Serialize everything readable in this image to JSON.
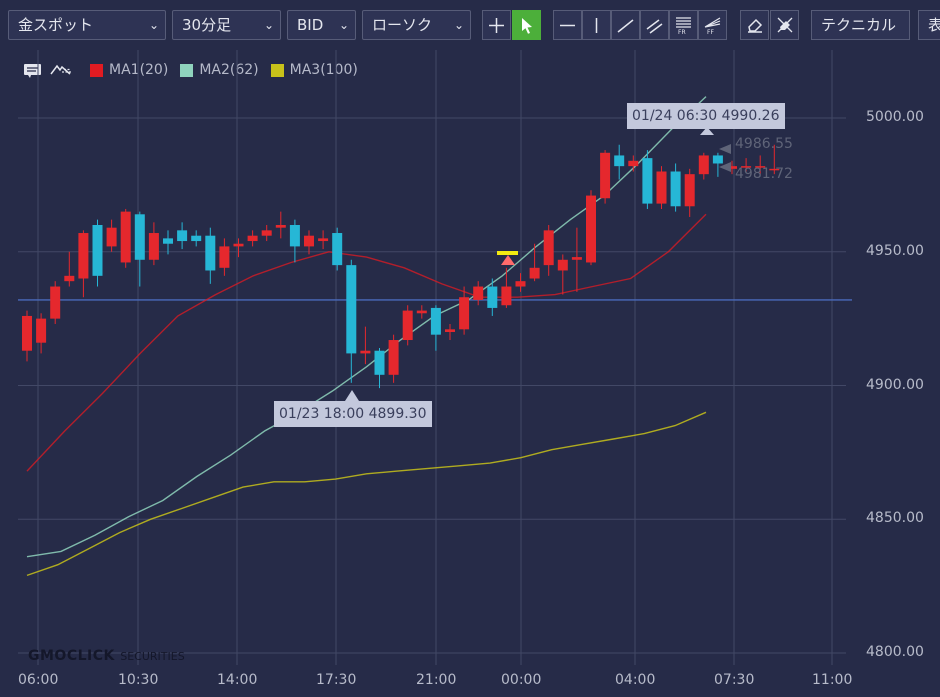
{
  "toolbar": {
    "symbol": "金スポット",
    "timeframe": "30分足",
    "price_type": "BID",
    "chart_style": "ローソク",
    "technical_label": "テクニカル",
    "display_label": "表"
  },
  "legend": {
    "series": [
      {
        "name": "MA1(20)",
        "color": "#e11b22"
      },
      {
        "name": "MA2(62)",
        "color": "#8fd3bd"
      },
      {
        "name": "MA3(100)",
        "color": "#c8c21a"
      }
    ]
  },
  "tooltips": {
    "high": "01/24 06:30 4990.26",
    "low": "01/23 18:00 4899.30"
  },
  "price_tags": {
    "upper": "4986.55",
    "lower": "4981.72"
  },
  "logo": {
    "main": "GMOCLICK",
    "sub": "SECURITIES"
  },
  "chart_data": {
    "type": "candlestick",
    "y_ticks": [
      "5000.00",
      "4950.00",
      "4900.00",
      "4850.00",
      "4800.00"
    ],
    "x_ticks": [
      "06:00",
      "10:30",
      "14:00",
      "17:30",
      "21:00",
      "00:00",
      "04:00",
      "07:30",
      "11:00"
    ],
    "ylim": [
      4800,
      5000
    ],
    "horizontal_line": 4932,
    "candles": [
      [
        4913,
        4926,
        4909,
        4928
      ],
      [
        4916,
        4925,
        4912,
        4927
      ],
      [
        4925,
        4937,
        4923,
        4939
      ],
      [
        4939,
        4941,
        4937,
        4950
      ],
      [
        4940,
        4957,
        4933,
        4958
      ],
      [
        4960,
        4941,
        4937,
        4962
      ],
      [
        4952,
        4959,
        4950,
        4962
      ],
      [
        4946,
        4965,
        4944,
        4966
      ],
      [
        4964,
        4947,
        4937,
        4965
      ],
      [
        4947,
        4957,
        4945,
        4961
      ],
      [
        4955,
        4953,
        4949,
        4958
      ],
      [
        4958,
        4954,
        4951,
        4961
      ],
      [
        4956,
        4954,
        4952,
        4958
      ],
      [
        4956,
        4943,
        4938,
        4959
      ],
      [
        4944,
        4952,
        4941,
        4955
      ],
      [
        4952,
        4953,
        4948,
        4955
      ],
      [
        4954,
        4956,
        4952,
        4958
      ],
      [
        4956,
        4958,
        4954,
        4960
      ],
      [
        4959,
        4960,
        4955,
        4965
      ],
      [
        4960,
        4952,
        4946,
        4962
      ],
      [
        4952,
        4956,
        4949,
        4958
      ],
      [
        4954,
        4955,
        4951,
        4958
      ],
      [
        4957,
        4945,
        4943,
        4959
      ],
      [
        4945,
        4912,
        4901,
        4947
      ],
      [
        4912,
        4913,
        4908,
        4922
      ],
      [
        4913,
        4904,
        4899,
        4914
      ],
      [
        4904,
        4917,
        4901,
        4919
      ],
      [
        4917,
        4928,
        4915,
        4930
      ],
      [
        4927,
        4928,
        4925,
        4930
      ],
      [
        4929,
        4919,
        4913,
        4930
      ],
      [
        4920,
        4921,
        4917,
        4923
      ],
      [
        4921,
        4933,
        4919,
        4937
      ],
      [
        4932,
        4937,
        4930,
        4939
      ],
      [
        4937,
        4929,
        4926,
        4940
      ],
      [
        4930,
        4937,
        4929,
        4944
      ],
      [
        4937,
        4939,
        4935,
        4942
      ],
      [
        4940,
        4944,
        4939,
        4953
      ],
      [
        4945,
        4958,
        4941,
        4960
      ],
      [
        4943,
        4947,
        4934,
        4949
      ],
      [
        4947,
        4948,
        4935,
        4959
      ],
      [
        4946,
        4971,
        4945,
        4973
      ],
      [
        4970,
        4987,
        4968,
        4988
      ],
      [
        4986,
        4982,
        4977,
        4990
      ],
      [
        4982,
        4984,
        4980,
        4986
      ],
      [
        4985,
        4968,
        4966,
        4988
      ],
      [
        4968,
        4980,
        4966,
        4982
      ],
      [
        4980,
        4967,
        4965,
        4983
      ],
      [
        4967,
        4979,
        4963,
        4981
      ],
      [
        4979,
        4986,
        4977,
        4987
      ],
      [
        4986,
        4983,
        4978,
        4987
      ],
      [
        4981,
        4982,
        4979,
        4984
      ],
      [
        4982,
        4982,
        4980,
        4985
      ],
      [
        4982,
        4982,
        4979,
        4986
      ],
      [
        4981,
        4981,
        4979,
        4990
      ]
    ],
    "series": [
      {
        "name": "MA1(20)",
        "values": [
          4868,
          4883,
          4897,
          4912,
          4926,
          4934,
          4941,
          4946,
          4950,
          4948,
          4944,
          4938,
          4933,
          4933,
          4934,
          4937,
          4940,
          4950,
          4964
        ]
      },
      {
        "name": "MA2(62)",
        "values": [
          4836,
          4838,
          4844,
          4851,
          4857,
          4866,
          4874,
          4883,
          4890,
          4898,
          4907,
          4917,
          4926,
          4932,
          4941,
          4952,
          4962,
          4971,
          4983,
          4996,
          5008
        ]
      },
      {
        "name": "MA3(100)",
        "values": [
          4829,
          4833,
          4839,
          4845,
          4850,
          4854,
          4858,
          4862,
          4864,
          4864,
          4865,
          4867,
          4868,
          4869,
          4870,
          4871,
          4873,
          4876,
          4878,
          4880,
          4882,
          4885,
          4890
        ]
      }
    ]
  }
}
